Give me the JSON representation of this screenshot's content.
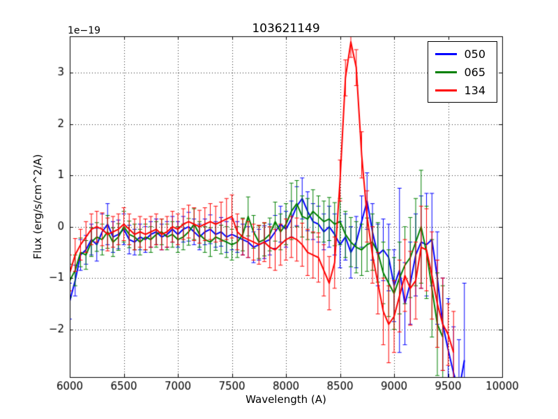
{
  "chart_data": {
    "type": "line",
    "title": "103621149",
    "xlabel": "Wavelength (A)",
    "ylabel": "Flux (erg/s/cm^2/A)",
    "offset_text": "1e−19",
    "xlim": [
      6000,
      10000
    ],
    "ylim": [
      -2.93,
      3.71
    ],
    "xticks": [
      6000,
      6500,
      7000,
      7500,
      8000,
      8500,
      9000,
      9500,
      10000
    ],
    "xticklabels": [
      "6000",
      "6500",
      "7000",
      "7500",
      "8000",
      "8500",
      "9000",
      "9500",
      "10000"
    ],
    "yticks": [
      -2,
      -1,
      0,
      1,
      2,
      3
    ],
    "yticklabels": [
      "−2",
      "−1",
      "0",
      "1",
      "2",
      "3"
    ],
    "grid": true,
    "grid_style": "dotted",
    "legend_position": "upper right",
    "spine_color": "#000000",
    "background_color": "#ffffff",
    "series": [
      {
        "name": "050",
        "color": "#0000ff",
        "x": [
          6000,
          6050,
          6100,
          6150,
          6200,
          6250,
          6300,
          6350,
          6400,
          6450,
          6500,
          6550,
          6600,
          6650,
          6700,
          6750,
          6800,
          6850,
          6900,
          6950,
          7000,
          7050,
          7100,
          7150,
          7200,
          7250,
          7300,
          7350,
          7400,
          7450,
          7500,
          7550,
          7600,
          7650,
          7700,
          7750,
          7800,
          7850,
          7900,
          7950,
          8000,
          8050,
          8100,
          8150,
          8200,
          8250,
          8300,
          8350,
          8400,
          8450,
          8500,
          8550,
          8600,
          8650,
          8700,
          8750,
          8800,
          8850,
          8900,
          8950,
          9000,
          9050,
          9100,
          9150,
          9200,
          9250,
          9300,
          9350,
          9400,
          9450,
          9500,
          9550,
          9600,
          9650
        ],
        "y": [
          -1.45,
          -1.05,
          -0.55,
          -0.45,
          -0.25,
          -0.35,
          -0.1,
          0.05,
          -0.2,
          -0.15,
          -0.05,
          -0.25,
          -0.3,
          -0.2,
          -0.25,
          -0.15,
          -0.1,
          -0.2,
          -0.15,
          -0.05,
          -0.15,
          -0.05,
          0.0,
          -0.1,
          -0.2,
          -0.1,
          -0.05,
          -0.15,
          -0.1,
          -0.2,
          -0.15,
          -0.2,
          -0.25,
          -0.3,
          -0.4,
          -0.35,
          -0.3,
          -0.25,
          -0.1,
          0.05,
          -0.05,
          0.15,
          0.4,
          0.55,
          0.3,
          0.1,
          0.05,
          -0.1,
          0.0,
          -0.15,
          -0.35,
          -0.2,
          -0.5,
          -0.3,
          0.1,
          0.5,
          -0.1,
          -0.55,
          -0.45,
          -0.6,
          -1.15,
          -0.85,
          -1.5,
          -1.1,
          -0.55,
          -0.3,
          -0.35,
          -0.25,
          -1.0,
          -1.9,
          -2.4,
          -2.85,
          -3.2,
          -2.6
        ],
        "yerr": [
          0.35,
          0.3,
          0.3,
          0.28,
          0.3,
          0.32,
          0.35,
          0.4,
          0.3,
          0.28,
          0.3,
          0.28,
          0.25,
          0.25,
          0.25,
          0.25,
          0.25,
          0.25,
          0.25,
          0.25,
          0.25,
          0.25,
          0.28,
          0.25,
          0.25,
          0.25,
          0.28,
          0.25,
          0.28,
          0.3,
          0.3,
          0.3,
          0.3,
          0.3,
          0.3,
          0.3,
          0.32,
          0.3,
          0.32,
          0.35,
          0.35,
          0.35,
          0.38,
          0.4,
          0.38,
          0.35,
          0.35,
          0.35,
          0.4,
          0.4,
          0.45,
          0.45,
          0.5,
          0.5,
          0.5,
          0.55,
          0.55,
          0.6,
          0.6,
          0.65,
          0.7,
          1.6,
          0.8,
          0.8,
          0.8,
          0.9,
          1.0,
          0.9,
          0.9,
          0.9,
          1.0,
          0.9,
          1.0,
          1.5
        ]
      },
      {
        "name": "065",
        "color": "#008000",
        "x": [
          6000,
          6050,
          6100,
          6150,
          6200,
          6250,
          6300,
          6350,
          6400,
          6450,
          6500,
          6550,
          6600,
          6650,
          6700,
          6750,
          6800,
          6850,
          6900,
          6950,
          7000,
          7050,
          7100,
          7150,
          7200,
          7250,
          7300,
          7350,
          7400,
          7450,
          7500,
          7550,
          7600,
          7650,
          7700,
          7750,
          7800,
          7850,
          7900,
          7950,
          8000,
          8050,
          8100,
          8150,
          8200,
          8250,
          8300,
          8350,
          8400,
          8450,
          8500,
          8550,
          8600,
          8650,
          8700,
          8750,
          8800,
          8850,
          8900,
          8950,
          9000,
          9050,
          9100,
          9150,
          9200,
          9250,
          9300,
          9350,
          9400,
          9450
        ],
        "y": [
          -1.05,
          -0.85,
          -0.5,
          -0.55,
          -0.3,
          -0.2,
          -0.25,
          -0.1,
          -0.3,
          -0.2,
          0.0,
          -0.15,
          -0.2,
          -0.3,
          -0.2,
          -0.25,
          -0.15,
          -0.1,
          -0.2,
          -0.15,
          -0.25,
          -0.2,
          -0.1,
          0.05,
          -0.15,
          -0.25,
          -0.3,
          -0.2,
          -0.25,
          -0.3,
          -0.35,
          -0.3,
          -0.15,
          0.2,
          -0.1,
          -0.3,
          -0.25,
          -0.15,
          0.1,
          -0.1,
          0.05,
          0.3,
          0.45,
          0.2,
          0.15,
          0.3,
          0.2,
          0.1,
          0.15,
          0.05,
          0.1,
          -0.15,
          -0.3,
          -0.4,
          -0.45,
          -0.35,
          -0.3,
          -0.5,
          -0.9,
          -1.1,
          -1.3,
          -1.0,
          -0.75,
          -0.6,
          -0.3,
          0.0,
          -0.5,
          -1.2,
          -1.9,
          -2.15
        ],
        "yerr": [
          0.32,
          0.3,
          0.28,
          0.28,
          0.28,
          0.28,
          0.3,
          0.32,
          0.28,
          0.26,
          0.3,
          0.26,
          0.25,
          0.25,
          0.25,
          0.25,
          0.25,
          0.25,
          0.25,
          0.25,
          0.25,
          0.25,
          0.26,
          0.3,
          0.25,
          0.25,
          0.28,
          0.26,
          0.28,
          0.3,
          0.3,
          0.3,
          0.32,
          0.38,
          0.32,
          0.32,
          0.32,
          0.32,
          0.38,
          0.35,
          0.4,
          0.55,
          0.45,
          0.4,
          0.4,
          0.42,
          0.4,
          0.4,
          0.42,
          0.42,
          0.45,
          0.45,
          0.48,
          0.5,
          0.5,
          0.52,
          0.55,
          0.58,
          0.6,
          0.65,
          0.7,
          0.7,
          0.75,
          0.78,
          0.85,
          1.1,
          0.9,
          0.95,
          1.0,
          1.0
        ]
      },
      {
        "name": "134",
        "color": "#ff0000",
        "x": [
          6000,
          6050,
          6100,
          6150,
          6200,
          6250,
          6300,
          6350,
          6400,
          6450,
          6500,
          6550,
          6600,
          6650,
          6700,
          6750,
          6800,
          6850,
          6900,
          6950,
          7000,
          7050,
          7100,
          7150,
          7200,
          7250,
          7300,
          7350,
          7400,
          7450,
          7500,
          7550,
          7600,
          7650,
          7700,
          7750,
          7800,
          7850,
          7900,
          7950,
          8000,
          8050,
          8100,
          8150,
          8200,
          8250,
          8300,
          8350,
          8400,
          8450,
          8500,
          8550,
          8600,
          8650,
          8700,
          8750,
          8800,
          8850,
          8900,
          8950,
          9000,
          9050,
          9100,
          9150,
          9200,
          9250,
          9300,
          9350,
          9400,
          9450,
          9500,
          9550
        ],
        "y": [
          -0.9,
          -0.55,
          -0.35,
          -0.2,
          -0.05,
          0.0,
          -0.05,
          -0.15,
          -0.1,
          -0.05,
          0.05,
          -0.05,
          -0.15,
          -0.1,
          -0.15,
          -0.1,
          -0.05,
          -0.15,
          -0.1,
          0.0,
          -0.05,
          0.05,
          0.1,
          0.05,
          0.0,
          0.05,
          0.1,
          0.05,
          0.1,
          0.15,
          0.2,
          -0.1,
          -0.2,
          -0.25,
          -0.3,
          -0.35,
          -0.3,
          -0.4,
          -0.45,
          -0.35,
          -0.25,
          -0.2,
          -0.25,
          -0.35,
          -0.5,
          -0.55,
          -0.6,
          -0.85,
          -1.1,
          -0.7,
          0.9,
          2.9,
          3.6,
          3.1,
          1.4,
          0.2,
          -0.55,
          -1.1,
          -1.65,
          -1.9,
          -1.75,
          -1.35,
          -0.95,
          -1.2,
          -1.05,
          -0.4,
          -0.45,
          -0.95,
          -1.5,
          -1.9,
          -2.1,
          -2.45
        ],
        "yerr": [
          0.35,
          0.32,
          0.3,
          0.3,
          0.3,
          0.3,
          0.32,
          0.32,
          0.3,
          0.3,
          0.32,
          0.3,
          0.3,
          0.3,
          0.3,
          0.3,
          0.3,
          0.3,
          0.3,
          0.3,
          0.3,
          0.3,
          0.32,
          0.32,
          0.32,
          0.32,
          0.35,
          0.35,
          0.38,
          0.4,
          0.42,
          0.35,
          0.35,
          0.35,
          0.35,
          0.38,
          0.38,
          0.4,
          0.4,
          0.4,
          0.4,
          0.4,
          0.42,
          0.42,
          0.45,
          0.45,
          0.48,
          0.5,
          0.52,
          0.5,
          0.4,
          0.35,
          0.3,
          0.35,
          0.45,
          0.5,
          0.55,
          0.6,
          0.65,
          0.75,
          0.7,
          0.7,
          0.7,
          0.72,
          0.75,
          0.8,
          0.8,
          0.85,
          0.85,
          0.9,
          0.6,
          0.8
        ]
      }
    ]
  }
}
